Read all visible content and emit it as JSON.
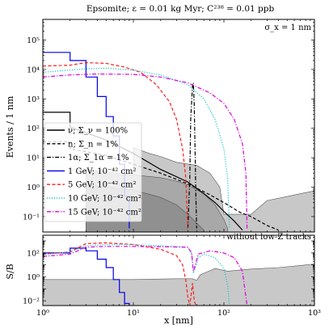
{
  "chart_data": [
    {
      "type": "line",
      "panel": "top",
      "title": "Epsomite; ε = 0.01 kg Myr; C²³⁸ = 0.01 ppb",
      "annotation": "σ_x = 1 nm",
      "xlabel": "",
      "ylabel": "Events / 1 nm",
      "xscale": "log",
      "yscale": "log",
      "xlim": [
        1,
        1000
      ],
      "ylim": [
        0.03,
        500000
      ],
      "yticks": [
        "10⁻¹",
        "10⁰",
        "10¹",
        "10²",
        "10³",
        "10⁴",
        "10⁵"
      ],
      "legend_position": "lower-left",
      "series": [
        {
          "name": "ν; Σ_ν = 100%",
          "style": "solid",
          "color": "#000000",
          "points": [
            [
              1,
              350
            ],
            [
              2,
              350
            ],
            [
              2,
              110
            ],
            [
              5,
              40
            ],
            [
              10,
              14
            ],
            [
              20,
              4
            ],
            [
              40,
              1.5
            ],
            [
              60,
              0.6
            ],
            [
              80,
              0.3
            ],
            [
              100,
              0.15
            ],
            [
              130,
              0.07
            ],
            [
              160,
              0.035
            ]
          ]
        },
        {
          "name": "n; Σ_n = 1%",
          "style": "dashed",
          "color": "#000000",
          "points": [
            [
              1,
              35
            ],
            [
              2,
              35
            ],
            [
              2,
              20
            ],
            [
              5,
              12
            ],
            [
              10,
              6
            ],
            [
              20,
              3
            ],
            [
              40,
              1.3
            ],
            [
              70,
              0.55
            ],
            [
              100,
              0.3
            ],
            [
              150,
              0.14
            ],
            [
              200,
              0.1
            ],
            [
              300,
              0.05
            ],
            [
              400,
              0.035
            ]
          ]
        },
        {
          "name": "1α; Σ_1α = 1%",
          "style": "dashdot",
          "color": "#000000",
          "points": [
            [
              40,
              0.04
            ],
            [
              42,
              2
            ],
            [
              43,
              200
            ],
            [
              45,
              3000
            ],
            [
              46,
              3500
            ],
            [
              47,
              600
            ],
            [
              48,
              20
            ],
            [
              49,
              0.5
            ],
            [
              50,
              0.04
            ]
          ]
        },
        {
          "name": "1 GeV; 10⁻⁴² cm²",
          "style": "step",
          "color": "#0000ee",
          "points": [
            [
              1,
              38000
            ],
            [
              2,
              38000
            ],
            [
              2,
              20000
            ],
            [
              3,
              20000
            ],
            [
              3,
              5500
            ],
            [
              4,
              5500
            ],
            [
              4,
              1200
            ],
            [
              5,
              1200
            ],
            [
              5,
              250
            ],
            [
              6,
              250
            ],
            [
              6,
              55
            ],
            [
              7,
              55
            ],
            [
              7,
              6
            ],
            [
              8,
              6
            ],
            [
              8,
              0.5
            ],
            [
              9,
              0.5
            ],
            [
              9,
              0.04
            ]
          ]
        },
        {
          "name": "5 GeV; 10⁻⁴² cm²",
          "style": "dashed",
          "color": "#ff1a1a",
          "points": [
            [
              1,
              13000
            ],
            [
              2,
              14000
            ],
            [
              3,
              17000
            ],
            [
              5,
              16000
            ],
            [
              8,
              12000
            ],
            [
              12,
              8000
            ],
            [
              18,
              3000
            ],
            [
              25,
              800
            ],
            [
              30,
              200
            ],
            [
              35,
              20
            ],
            [
              38,
              2
            ],
            [
              40,
              0.04
            ]
          ]
        },
        {
          "name": "10 GeV; 10⁻⁴² cm²",
          "style": "dotted",
          "color": "#16c4c4",
          "points": [
            [
              1,
              8000
            ],
            [
              2,
              9500
            ],
            [
              3,
              10500
            ],
            [
              5,
              11000
            ],
            [
              10,
              9500
            ],
            [
              20,
              6500
            ],
            [
              40,
              3000
            ],
            [
              60,
              1000
            ],
            [
              80,
              200
            ],
            [
              100,
              20
            ],
            [
              110,
              2
            ],
            [
              115,
              0.04
            ]
          ]
        },
        {
          "name": "15 GeV; 10⁻⁴² cm²",
          "style": "dashdot",
          "color": "#dd00dd",
          "points": [
            [
              1,
              5500
            ],
            [
              2,
              6500
            ],
            [
              4,
              7000
            ],
            [
              10,
              6800
            ],
            [
              20,
              5500
            ],
            [
              40,
              3500
            ],
            [
              70,
              1600
            ],
            [
              100,
              700
            ],
            [
              130,
              200
            ],
            [
              160,
              30
            ],
            [
              175,
              3
            ],
            [
              180,
              0.04
            ]
          ]
        }
      ],
      "bands": [
        {
          "name": "upper",
          "color": "#c8c8c8",
          "points": [
            [
              10,
              22
            ],
            [
              15,
              14
            ],
            [
              20,
              11
            ],
            [
              30,
              7
            ],
            [
              50,
              5.5
            ],
            [
              70,
              3
            ],
            [
              90,
              1
            ],
            [
              100,
              0.12
            ],
            [
              200,
              0.12
            ],
            [
              300,
              0.35
            ],
            [
              500,
              0.48
            ],
            [
              700,
              0.6
            ],
            [
              1000,
              0.75
            ]
          ]
        },
        {
          "name": "middle",
          "color": "#a8a8a8",
          "points": [
            [
              3,
              4
            ],
            [
              10,
              2.6
            ],
            [
              20,
              2.1
            ],
            [
              30,
              1.6
            ],
            [
              40,
              1.2
            ],
            [
              60,
              0.6
            ],
            [
              80,
              0.25
            ],
            [
              100,
              0.08
            ],
            [
              110,
              0.04
            ]
          ]
        },
        {
          "name": "lower",
          "color": "#909090",
          "points": [
            [
              3,
              1.2
            ],
            [
              10,
              0.8
            ],
            [
              20,
              0.45
            ],
            [
              30,
              0.25
            ],
            [
              40,
              0.12
            ],
            [
              50,
              0.06
            ],
            [
              60,
              0.035
            ]
          ]
        }
      ]
    },
    {
      "type": "line",
      "panel": "bottom",
      "annotation": "without low-Z tracks",
      "xlabel": "x [nm]",
      "ylabel": "S/B",
      "xscale": "log",
      "yscale": "log",
      "xlim": [
        1,
        1000
      ],
      "ylim": [
        0.004,
        3000
      ],
      "yticks": [
        "10⁻²",
        "10⁰",
        "10²"
      ],
      "xticks": [
        "10⁰",
        "10¹",
        "10²",
        "10³"
      ],
      "band": {
        "color": "#c8c8c8",
        "points": [
          [
            1,
            0.6
          ],
          [
            10,
            0.6
          ],
          [
            30,
            0.7
          ],
          [
            45,
            0.7
          ],
          [
            50,
            0.5
          ],
          [
            55,
            1.5
          ],
          [
            80,
            5
          ],
          [
            110,
            3
          ],
          [
            200,
            4.5
          ],
          [
            400,
            6
          ],
          [
            700,
            9
          ],
          [
            1000,
            12
          ]
        ]
      },
      "series": [
        {
          "name": "1 GeV; 10⁻⁴² cm²",
          "style": "step",
          "color": "#0000ee",
          "points": [
            [
              1,
              100
            ],
            [
              2,
              100
            ],
            [
              2,
              250
            ],
            [
              3,
              250
            ],
            [
              3,
              150
            ],
            [
              4,
              150
            ],
            [
              4,
              30
            ],
            [
              5,
              30
            ],
            [
              5,
              6
            ],
            [
              6,
              6
            ],
            [
              6,
              0.6
            ],
            [
              7,
              0.6
            ],
            [
              7,
              0.05
            ],
            [
              8,
              0.05
            ],
            [
              8,
              0.006
            ],
            [
              9,
              0.006
            ],
            [
              9,
              0.004
            ]
          ]
        },
        {
          "name": "5 GeV; 10⁻⁴² cm²",
          "style": "dashed",
          "color": "#ff1a1a",
          "points": [
            [
              1,
              80
            ],
            [
              2,
              120
            ],
            [
              3,
              600
            ],
            [
              5,
              700
            ],
            [
              10,
              500
            ],
            [
              20,
              200
            ],
            [
              30,
              60
            ],
            [
              35,
              10
            ],
            [
              38,
              0.5
            ],
            [
              40,
              0.02
            ],
            [
              42,
              0.004
            ],
            [
              45,
              0.3
            ],
            [
              47,
              0.01
            ],
            [
              49,
              0.004
            ]
          ]
        },
        {
          "name": "10 GeV; 10⁻⁴² cm²",
          "style": "dotted",
          "color": "#16c4c4",
          "points": [
            [
              1,
              70
            ],
            [
              2,
              120
            ],
            [
              3,
              400
            ],
            [
              5,
              500
            ],
            [
              10,
              500
            ],
            [
              20,
              400
            ],
            [
              40,
              300
            ],
            [
              44,
              80
            ],
            [
              46,
              2
            ],
            [
              48,
              5
            ],
            [
              52,
              40
            ],
            [
              60,
              80
            ],
            [
              80,
              40
            ],
            [
              100,
              5
            ],
            [
              110,
              0.2
            ],
            [
              115,
              0.004
            ]
          ]
        },
        {
          "name": "15 GeV; 10⁻⁴² cm²",
          "style": "dashdot",
          "color": "#dd00dd",
          "points": [
            [
              1,
              50
            ],
            [
              2,
              80
            ],
            [
              3,
              300
            ],
            [
              5,
              350
            ],
            [
              10,
              350
            ],
            [
              20,
              330
            ],
            [
              40,
              300
            ],
            [
              44,
              100
            ],
            [
              46,
              3
            ],
            [
              48,
              8
            ],
            [
              52,
              80
            ],
            [
              70,
              150
            ],
            [
              100,
              100
            ],
            [
              130,
              40
            ],
            [
              160,
              3
            ],
            [
              180,
              0.004
            ]
          ]
        }
      ]
    }
  ]
}
